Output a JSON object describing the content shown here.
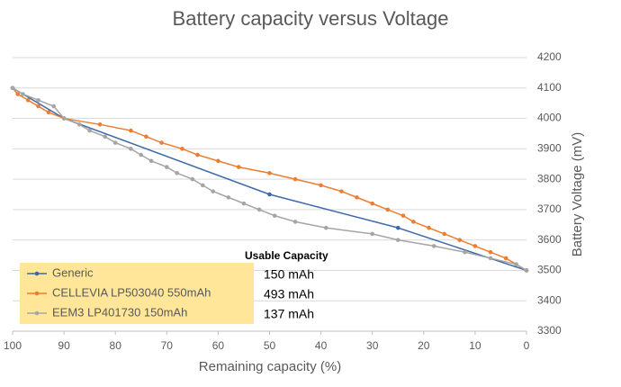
{
  "chart_data": {
    "type": "line",
    "title": "Battery capacity versus Voltage",
    "x_label": "Remaining capacity (%)",
    "y_label": "Battery Voltage (mV)",
    "legend_title": "Usable Capacity",
    "xlim": [
      100,
      0
    ],
    "xticks": [
      100,
      90,
      80,
      70,
      60,
      50,
      40,
      30,
      20,
      10,
      0
    ],
    "ylim": [
      3300,
      4200
    ],
    "yticks": [
      3300,
      3400,
      3500,
      3600,
      3700,
      3800,
      3900,
      4000,
      4100,
      4200
    ],
    "grid": true,
    "legend_position": "lower left",
    "series": [
      {
        "name": "Generic",
        "color": "#3e68a8",
        "capacity": "150 mAh",
        "x": [
          100,
          90,
          50,
          25,
          0
        ],
        "values": [
          4100,
          4000,
          3750,
          3640,
          3500
        ]
      },
      {
        "name": "CELLEVIA LP503040 550mAh",
        "color": "#ed7d31",
        "capacity": "493 mAh",
        "x": [
          100,
          99,
          97,
          95,
          93,
          90,
          83,
          77,
          74,
          71,
          67,
          64,
          60,
          56,
          50,
          45,
          40,
          36,
          33,
          30,
          27,
          24,
          22,
          19,
          16,
          13,
          10,
          7,
          4,
          2,
          0
        ],
        "values": [
          4100,
          4080,
          4060,
          4040,
          4020,
          4000,
          3980,
          3960,
          3940,
          3920,
          3900,
          3880,
          3860,
          3840,
          3820,
          3800,
          3780,
          3760,
          3740,
          3720,
          3700,
          3680,
          3660,
          3640,
          3620,
          3600,
          3580,
          3560,
          3540,
          3520,
          3500
        ]
      },
      {
        "name": "EEM3 LP401730 150mAh",
        "color": "#a5a5a5",
        "capacity": "137 mAh",
        "x": [
          100,
          98,
          95,
          92,
          90,
          87,
          85,
          82,
          80,
          77,
          75,
          73,
          70,
          68,
          65,
          63,
          61,
          58,
          55,
          52,
          49,
          45,
          39,
          30,
          25,
          18,
          12,
          7,
          2,
          0
        ],
        "values": [
          4100,
          4080,
          4060,
          4040,
          4000,
          3980,
          3960,
          3940,
          3920,
          3900,
          3880,
          3860,
          3840,
          3820,
          3800,
          3780,
          3760,
          3740,
          3720,
          3700,
          3680,
          3660,
          3640,
          3620,
          3600,
          3580,
          3560,
          3540,
          3520,
          3500
        ]
      }
    ]
  }
}
